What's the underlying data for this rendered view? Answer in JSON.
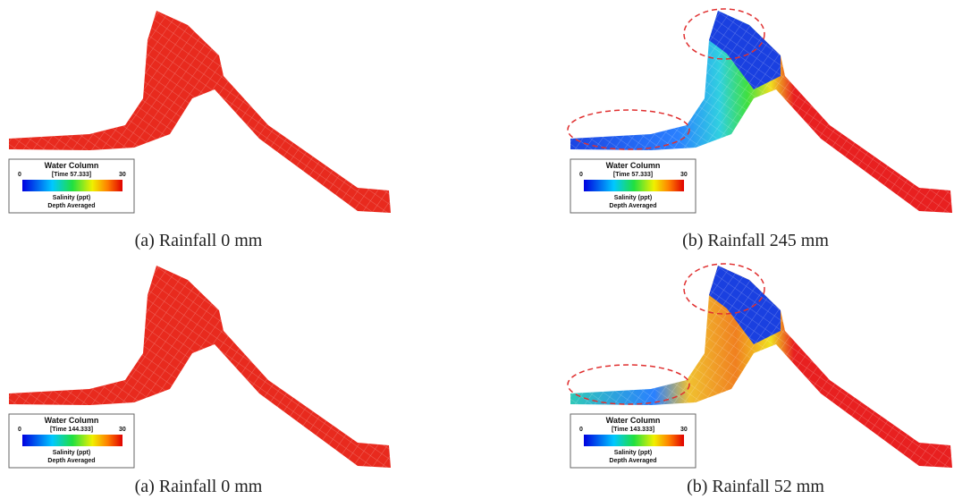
{
  "panels": [
    {
      "caption": "(a) Rainfall 0 mm",
      "legend": {
        "title": "Water Column",
        "time": "[Time 57.333]",
        "min": 0,
        "max": 30,
        "variable": "Salinity (ppt)",
        "mode": "Depth Averaged"
      }
    },
    {
      "caption": "(b) Rainfall 245 mm",
      "legend": {
        "title": "Water Column",
        "time": "[Time 57.333]",
        "min": 0,
        "max": 30,
        "variable": "Salinity (ppt)",
        "mode": "Depth Averaged"
      }
    },
    {
      "caption": "(a) Rainfall 0 mm",
      "legend": {
        "title": "Water Column",
        "time": "[Time 144.333]",
        "min": 0,
        "max": 30,
        "variable": "Salinity (ppt)",
        "mode": "Depth Averaged"
      }
    },
    {
      "caption": "(b) Rainfall 52 mm",
      "legend": {
        "title": "Water Column",
        "time": "[Time 143.333]",
        "min": 0,
        "max": 30,
        "variable": "Salinity (ppt)",
        "mode": "Depth Averaged"
      }
    }
  ]
}
